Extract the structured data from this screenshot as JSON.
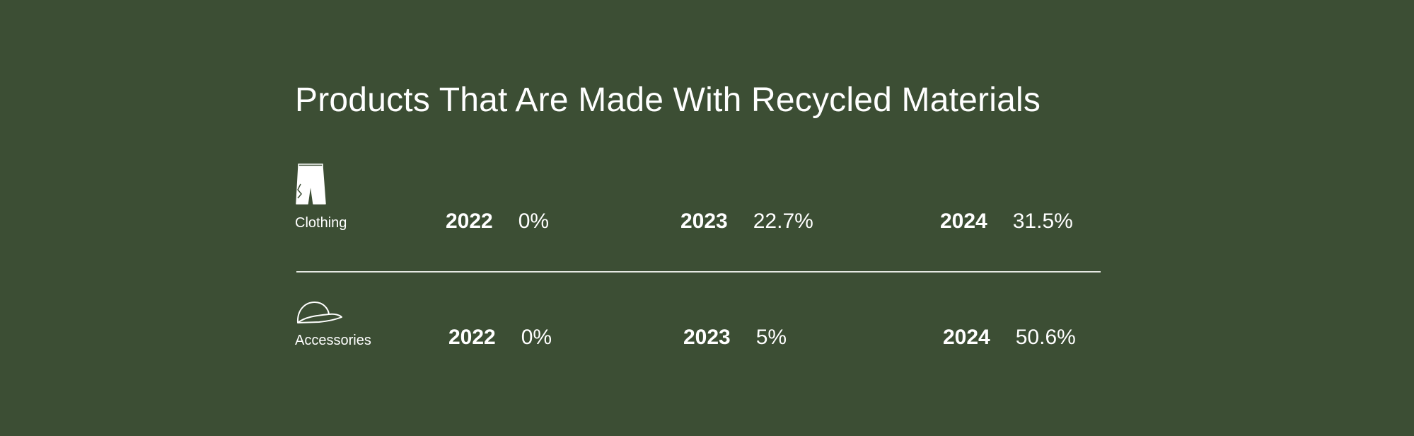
{
  "colors": {
    "background": "#3c4e34",
    "text": "#ffffff",
    "divider": "#e6e9e3"
  },
  "title": "Products That Are Made With Recycled Materials",
  "rows": [
    {
      "category": "Clothing",
      "icon": "shorts-icon",
      "stats": [
        {
          "year": "2022",
          "value": "0%"
        },
        {
          "year": "2023",
          "value": "22.7%"
        },
        {
          "year": "2024",
          "value": "31.5%"
        }
      ]
    },
    {
      "category": "Accessories",
      "icon": "cap-icon",
      "stats": [
        {
          "year": "2022",
          "value": "0%"
        },
        {
          "year": "2023",
          "value": "5%"
        },
        {
          "year": "2024",
          "value": "50.6%"
        }
      ]
    }
  ]
}
